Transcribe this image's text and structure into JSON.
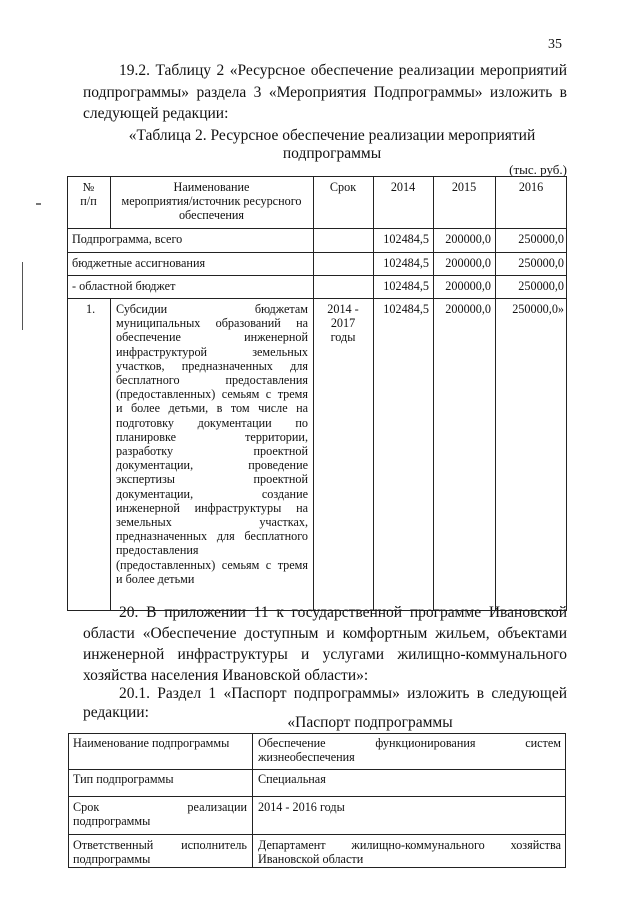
{
  "page_number": "35",
  "para_19_2": [
    "19.2. Таблицу 2 «Ресурсное обеспечение реализации мероприятий",
    "подпрограммы» раздела 3 «Мероприятия Подпрограммы» изложить в",
    "следующей редакции:"
  ],
  "table1_title": [
    "«Таблица 2. Ресурсное обеспечение реализации мероприятий",
    "подпрограммы"
  ],
  "table1_unit": "(тыс. руб.)",
  "table1": {
    "headers": {
      "num": [
        "№",
        "п/п"
      ],
      "name": [
        "Наименование",
        "мероприятия/источник ресурсного",
        "обеспечения"
      ],
      "term": "Срок",
      "y2014": "2014",
      "y2015": "2015",
      "y2016": "2016"
    },
    "summary_rows": [
      {
        "label": "Подпрограмма, всего",
        "v2014": "102484,5",
        "v2015": "200000,0",
        "v2016": "250000,0"
      },
      {
        "label": "бюджетные ассигнования",
        "v2014": "102484,5",
        "v2015": "200000,0",
        "v2016": "250000,0"
      },
      {
        "label": "- областной бюджет",
        "v2014": "102484,5",
        "v2015": "200000,0",
        "v2016": "250000,0"
      }
    ],
    "item": {
      "num": "1.",
      "name_lines": [
        "Субсидии бюджетам",
        "муниципальных образований на",
        "обеспечение инженерной",
        "инфраструктурой земельных",
        "участков, предназначенных для",
        "бесплатного предоставления",
        "(предоставленных) семьям с тремя",
        "и более детьми, в том числе на",
        "подготовку документации по",
        "планировке территории,",
        "разработку проектной",
        "документации, проведение",
        "экспертизы проектной",
        "документации, создание",
        "инженерной инфраструктуры на",
        "земельных участках,",
        "предназначенных для бесплатного",
        "предоставления",
        "(предоставленных) семьям с тремя",
        "и более детьми"
      ],
      "term_lines": [
        "2014 -",
        "2017",
        "годы"
      ],
      "v2014": "102484,5",
      "v2015": "200000,0",
      "v2016": "250000,0»"
    }
  },
  "para_20": [
    "20. В приложении 11 к государственной программе Ивановской",
    "области «Обеспечение доступным и комфортным жильем, объектами",
    "инженерной инфраструктуры и услугами жилищно-коммунального",
    "хозяйства населения Ивановской области»:"
  ],
  "para_20_1": [
    "20.1. Раздел 1 «Паспорт подпрограммы» изложить в следующей",
    "редакции:"
  ],
  "passport_title": "«Паспорт подпрограммы",
  "passport_rows": [
    {
      "label": [
        "Наименование подпрограммы"
      ],
      "value": [
        "Обеспечение функционирования систем",
        "жизнеобеспечения"
      ]
    },
    {
      "label": [
        "Тип подпрограммы"
      ],
      "value": [
        "Специальная"
      ]
    },
    {
      "label": [
        "Срок реализации",
        "подпрограммы"
      ],
      "value": [
        "2014 - 2016 годы"
      ]
    },
    {
      "label": [
        "Ответственный исполнитель",
        "подпрограммы"
      ],
      "value": [
        "Департамент жилищно-коммунального хозяйства",
        "Ивановской области"
      ]
    }
  ]
}
